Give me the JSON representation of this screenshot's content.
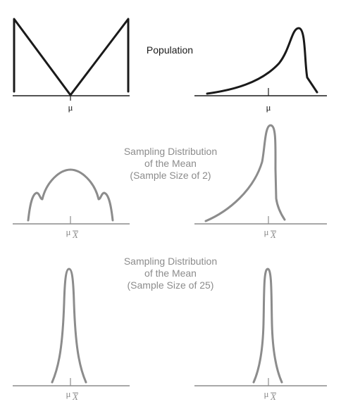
{
  "colors": {
    "population": "#1a1a1a",
    "sampling": "#8c8c8c"
  },
  "rows": [
    {
      "label_lines": [
        "Population"
      ],
      "left": {
        "mean_label": "μ",
        "bar": false
      },
      "right": {
        "mean_label": "μ",
        "bar": false
      }
    },
    {
      "label_lines": [
        "Sampling Distribution",
        "of the Mean",
        "(Sample Size of 2)"
      ],
      "left": {
        "mean_label": "μ",
        "mean_subscript": "X",
        "bar": true
      },
      "right": {
        "mean_label": "μ",
        "mean_subscript": "X",
        "bar": true
      }
    },
    {
      "label_lines": [
        "Sampling Distribution",
        "of the Mean",
        "(Sample Size of 25)"
      ],
      "left": {
        "mean_label": "μ",
        "mean_subscript": "X",
        "bar": true
      },
      "right": {
        "mean_label": "μ",
        "mean_subscript": "X",
        "bar": true
      }
    }
  ]
}
